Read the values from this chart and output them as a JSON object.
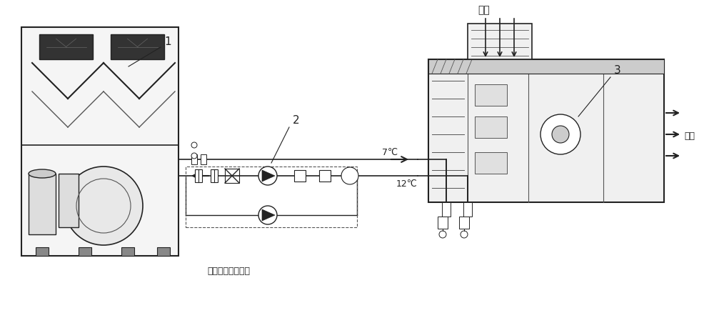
{
  "bg_color": "#ffffff",
  "line_color": "#555555",
  "dark_color": "#222222",
  "light_gray": "#aaaaaa",
  "mid_gray": "#888888",
  "label1": "1",
  "label2": "2",
  "label3": "3",
  "temp_supply": "7℃",
  "temp_return": "12℃",
  "fresh_air_label": "新风",
  "supply_air_label": "送风",
  "pump_label": "循环水泵一用一备",
  "title_fontsize": 12,
  "annotation_fontsize": 11,
  "small_fontsize": 9
}
